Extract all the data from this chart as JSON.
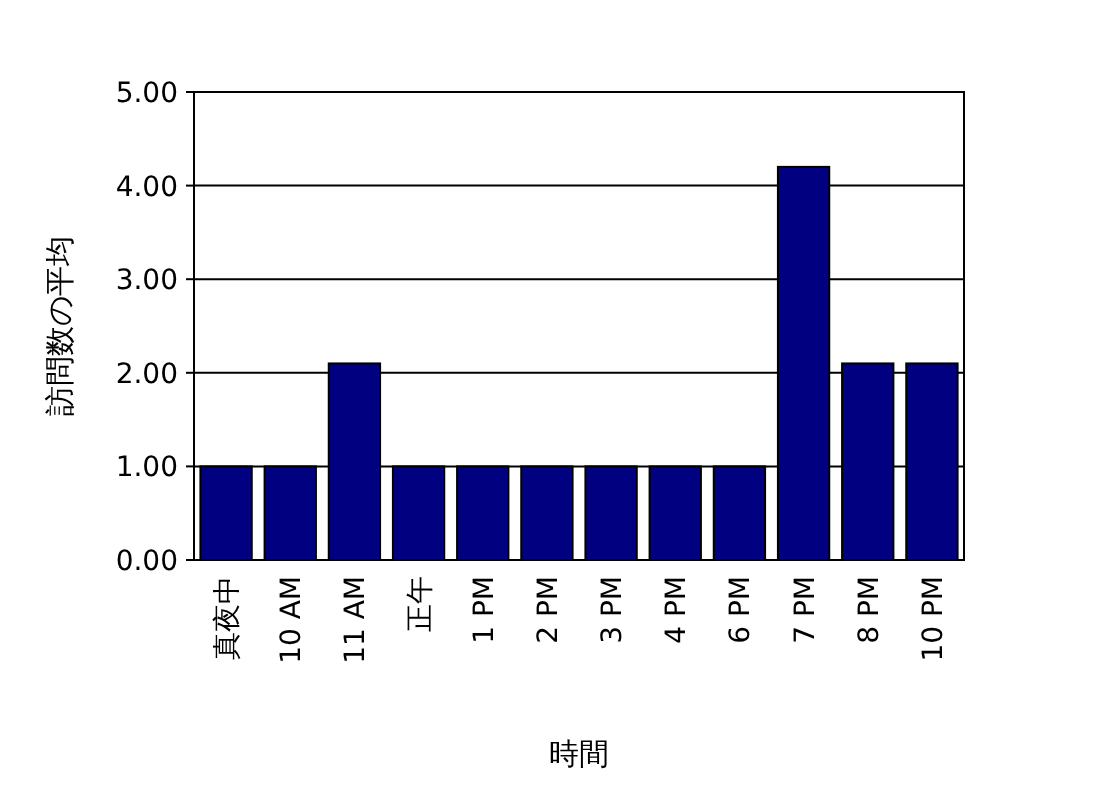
{
  "chart_data": {
    "type": "bar",
    "xlabel": "時間",
    "ylabel": "訪問数の平均",
    "categories": [
      "真夜中",
      "10 AM",
      "11 AM",
      "正午",
      "1 PM",
      "2 PM",
      "3 PM",
      "4 PM",
      "6 PM",
      "7 PM",
      "8 PM",
      "10 PM"
    ],
    "values": [
      1,
      1,
      2.1,
      1,
      1,
      1,
      1,
      1,
      1,
      4.2,
      2.1,
      2.1
    ],
    "color": "#000080",
    "ylim": [
      0,
      5
    ],
    "yticks": [
      {
        "value": 0,
        "label": "0.00"
      },
      {
        "value": 1,
        "label": "1.00"
      },
      {
        "value": 2,
        "label": "2.00"
      },
      {
        "value": 3,
        "label": "3.00"
      },
      {
        "value": 4,
        "label": "4.00"
      },
      {
        "value": 5,
        "label": "5.00"
      }
    ],
    "grid": "y"
  }
}
